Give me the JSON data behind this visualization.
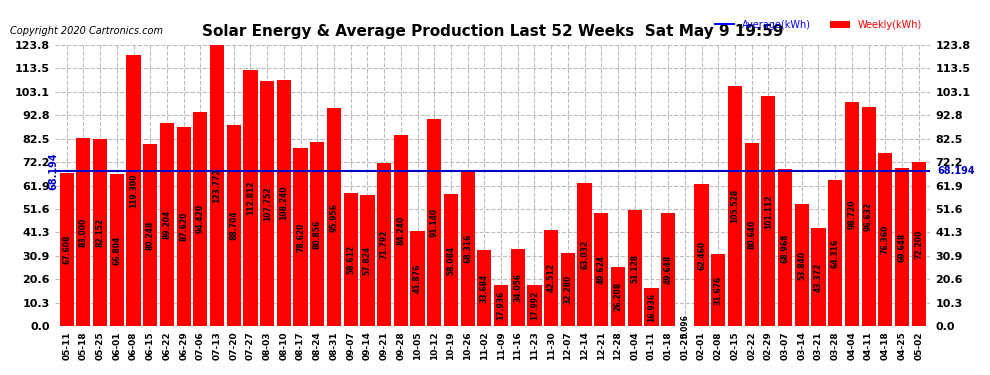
{
  "title": "Solar Energy & Average Production Last 52 Weeks  Sat May 9 19:59",
  "copyright": "Copyright 2020 Cartronics.com",
  "average_value": 68.194,
  "average_label": "68.194",
  "bar_color": "#ff0000",
  "average_line_color": "#0000cc",
  "legend_average_color": "#0000ff",
  "legend_weekly_color": "#ff0000",
  "background_color": "#ffffff",
  "grid_color": "#aaaaaa",
  "ylim": [
    0.0,
    123.8
  ],
  "yticks": [
    0.0,
    10.3,
    20.6,
    30.9,
    41.3,
    51.6,
    61.9,
    72.2,
    82.5,
    92.8,
    103.1,
    113.5,
    123.8
  ],
  "categories": [
    "05-11",
    "05-18",
    "05-25",
    "06-01",
    "06-08",
    "06-15",
    "06-22",
    "06-29",
    "07-06",
    "07-13",
    "07-20",
    "07-27",
    "08-03",
    "08-10",
    "08-17",
    "08-24",
    "08-31",
    "09-07",
    "09-14",
    "09-21",
    "09-28",
    "10-05",
    "10-12",
    "10-19",
    "10-26",
    "11-02",
    "11-09",
    "11-16",
    "11-23",
    "11-30",
    "12-07",
    "12-14",
    "12-21",
    "12-28",
    "01-04",
    "01-11",
    "01-18",
    "01-25",
    "02-01",
    "02-08",
    "02-15",
    "02-22",
    "02-29",
    "03-07",
    "03-14",
    "03-21",
    "03-28",
    "04-04",
    "04-11",
    "04-18",
    "04-25",
    "05-02"
  ],
  "values": [
    67.608,
    83.0,
    82.152,
    66.804,
    119.3,
    80.248,
    89.204,
    87.62,
    94.42,
    123.772,
    88.704,
    112.812,
    107.752,
    108.24,
    78.62,
    80.856,
    95.956,
    58.612,
    57.824,
    71.792,
    84.24,
    41.876,
    91.14,
    58.084,
    68.316,
    33.684,
    17.936,
    34.056,
    17.992,
    42.512,
    32.28,
    63.032,
    49.624,
    26.208,
    51.128,
    16.936,
    49.648,
    0.096,
    62.46,
    31.676,
    105.528,
    80.64,
    101.112,
    68.968,
    53.84,
    43.372,
    64.316,
    98.72,
    96.632,
    76.36,
    69.648,
    72.2
  ]
}
